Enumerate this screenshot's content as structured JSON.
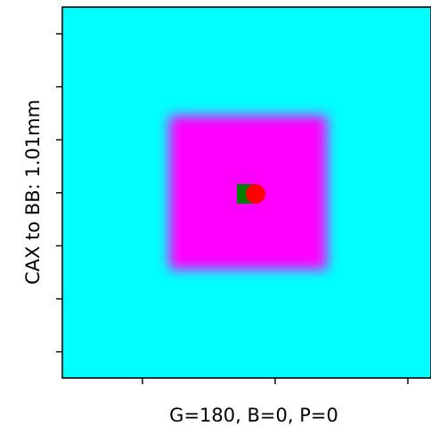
{
  "chart_data": {
    "type": "heatmap",
    "xlabel": "G=180, B=0, P=0",
    "ylabel": "CAX to BB: 1.01mm",
    "background_color": "#00ffff",
    "field_color": "#ff00ff",
    "xtick_labels": [],
    "ytick_labels": [],
    "x_tick_count": 3,
    "y_tick_count": 7,
    "markers": [
      {
        "name": "CAX",
        "shape": "square",
        "color": "#008000"
      },
      {
        "name": "BB",
        "shape": "circle",
        "color": "#ff0000"
      }
    ]
  }
}
